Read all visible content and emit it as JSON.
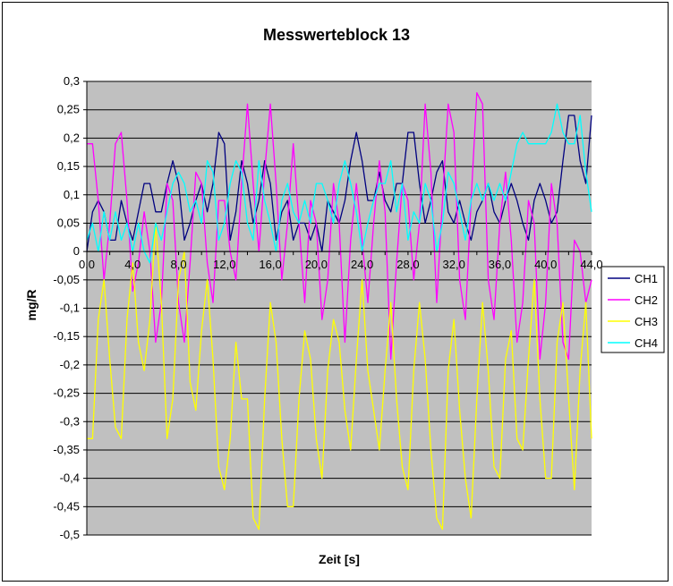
{
  "chart_data": {
    "type": "line",
    "title": "Messwerteblock 13",
    "xlabel": "Zeit [s]",
    "ylabel": "mg/R",
    "ylim": [
      -0.5,
      0.3
    ],
    "xlim": [
      0,
      44
    ],
    "x_tick_values": [
      0,
      4,
      8,
      12,
      16,
      20,
      24,
      28,
      32,
      36,
      40,
      44
    ],
    "x_tick_labels": [
      "0,0",
      "4,0",
      "8,0",
      "12,0",
      "16,0",
      "20,0",
      "24,0",
      "28,0",
      "32,0",
      "36,0",
      "40,0",
      "44,0"
    ],
    "y_tick_values": [
      0.3,
      0.25,
      0.2,
      0.15,
      0.1,
      0.05,
      0,
      -0.05,
      -0.1,
      -0.15,
      -0.2,
      -0.25,
      -0.3,
      -0.35,
      -0.4,
      -0.45,
      -0.5
    ],
    "y_tick_labels": [
      "0,3",
      "0,25",
      "0,2",
      "0,15",
      "0,1",
      "0,05",
      "0",
      "-0,05",
      "-0,1",
      "-0,15",
      "-0,2",
      "-0,25",
      "-0,3",
      "-0,35",
      "-0,4",
      "-0,45",
      "-0,5"
    ],
    "grid": true,
    "legend_position": "right",
    "plot_background": "#c0c0c0",
    "series": [
      {
        "name": "CH1",
        "color": "#000080",
        "x": [
          0,
          0.5,
          1,
          1.5,
          2,
          2.5,
          3,
          3.5,
          4,
          4.5,
          5,
          5.5,
          6,
          6.5,
          7,
          7.5,
          8,
          8.5,
          9,
          9.5,
          10,
          10.5,
          11,
          11.5,
          12,
          12.5,
          13,
          13.5,
          14,
          14.5,
          15,
          15.5,
          16,
          16.5,
          17,
          17.5,
          18,
          18.5,
          19,
          19.5,
          20,
          20.5,
          21,
          21.5,
          22,
          22.5,
          23,
          23.5,
          24,
          24.5,
          25,
          25.5,
          26,
          26.5,
          27,
          27.5,
          28,
          28.5,
          29,
          29.5,
          30,
          30.5,
          31,
          31.5,
          32,
          32.5,
          33,
          33.5,
          34,
          34.5,
          35,
          35.5,
          36,
          36.5,
          37,
          37.5,
          38,
          38.5,
          39,
          39.5,
          40,
          40.5,
          41,
          41.5,
          42,
          42.5,
          43,
          43.5,
          44
        ],
        "y": [
          0,
          0.07,
          0.09,
          0.07,
          0.02,
          0.02,
          0.09,
          0.05,
          0.02,
          0.07,
          0.12,
          0.12,
          0.07,
          0.07,
          0.12,
          0.16,
          0.12,
          0.02,
          0.05,
          0.09,
          0.12,
          0.07,
          0.12,
          0.21,
          0.19,
          0.02,
          0.07,
          0.16,
          0.12,
          0.05,
          0.09,
          0.16,
          0.12,
          0.02,
          0.07,
          0.09,
          0.02,
          0.05,
          0.05,
          0.02,
          0.05,
          0.0,
          0.09,
          0.07,
          0.05,
          0.09,
          0.16,
          0.21,
          0.16,
          0.09,
          0.09,
          0.14,
          0.09,
          0.07,
          0.12,
          0.12,
          0.21,
          0.21,
          0.12,
          0.05,
          0.09,
          0.14,
          0.16,
          0.07,
          0.05,
          0.09,
          0.05,
          0.02,
          0.07,
          0.09,
          0.12,
          0.07,
          0.05,
          0.09,
          0.12,
          0.09,
          0.05,
          0.02,
          0.09,
          0.12,
          0.09,
          0.05,
          0.07,
          0.16,
          0.24,
          0.24,
          0.16,
          0.12,
          0.24
        ]
      },
      {
        "name": "CH2",
        "color": "#ff00ff",
        "x": [
          0,
          0.5,
          1,
          1.5,
          2,
          2.5,
          3,
          3.5,
          4,
          4.5,
          5,
          5.5,
          6,
          6.5,
          7,
          7.5,
          8,
          8.5,
          9,
          9.5,
          10,
          10.5,
          11,
          11.5,
          12,
          12.5,
          13,
          13.5,
          14,
          14.5,
          15,
          15.5,
          16,
          16.5,
          17,
          17.5,
          18,
          18.5,
          19,
          19.5,
          20,
          20.5,
          21,
          21.5,
          22,
          22.5,
          23,
          23.5,
          24,
          24.5,
          25,
          25.5,
          26,
          26.5,
          27,
          27.5,
          28,
          28.5,
          29,
          29.5,
          30,
          30.5,
          31,
          31.5,
          32,
          32.5,
          33,
          33.5,
          34,
          34.5,
          35,
          35.5,
          36,
          36.5,
          37,
          37.5,
          38,
          38.5,
          39,
          39.5,
          40,
          40.5,
          41,
          41.5,
          42,
          42.5,
          43,
          43.5,
          44
        ],
        "y": [
          0.19,
          0.19,
          0.09,
          -0.05,
          0.05,
          0.19,
          0.21,
          0.09,
          -0.07,
          -0.02,
          0.07,
          0.0,
          -0.16,
          -0.09,
          0.12,
          0.09,
          -0.09,
          -0.16,
          -0.02,
          0.14,
          0.12,
          -0.02,
          -0.09,
          0.09,
          0.09,
          0.0,
          -0.05,
          0.12,
          0.26,
          0.12,
          0.0,
          0.14,
          0.26,
          0.12,
          -0.05,
          0.05,
          0.19,
          0.05,
          -0.09,
          0.09,
          0.05,
          -0.12,
          -0.05,
          0.12,
          0.05,
          -0.16,
          0.02,
          0.12,
          0.02,
          -0.09,
          0.05,
          0.16,
          0.07,
          -0.19,
          -0.02,
          0.12,
          0.09,
          -0.05,
          0.05,
          0.26,
          0.14,
          -0.09,
          0.09,
          0.26,
          0.21,
          -0.05,
          -0.12,
          0.09,
          0.28,
          0.26,
          -0.05,
          -0.12,
          0.05,
          0.14,
          0.02,
          -0.16,
          -0.09,
          0.09,
          0.05,
          -0.19,
          -0.09,
          0.12,
          0.05,
          -0.16,
          -0.19,
          0.02,
          0.0,
          -0.09,
          -0.05
        ]
      },
      {
        "name": "CH3",
        "color": "#ffff00",
        "x": [
          0,
          0.5,
          1,
          1.5,
          2,
          2.5,
          3,
          3.5,
          4,
          4.5,
          5,
          5.5,
          6,
          6.5,
          7,
          7.5,
          8,
          8.5,
          9,
          9.5,
          10,
          10.5,
          11,
          11.5,
          12,
          12.5,
          13,
          13.5,
          14,
          14.5,
          15,
          15.5,
          16,
          16.5,
          17,
          17.5,
          18,
          18.5,
          19,
          19.5,
          20,
          20.5,
          21,
          21.5,
          22,
          22.5,
          23,
          23.5,
          24,
          24.5,
          25,
          25.5,
          26,
          26.5,
          27,
          27.5,
          28,
          28.5,
          29,
          29.5,
          30,
          30.5,
          31,
          31.5,
          32,
          32.5,
          33,
          33.5,
          34,
          34.5,
          35,
          35.5,
          36,
          36.5,
          37,
          37.5,
          38,
          38.5,
          39,
          39.5,
          40,
          40.5,
          41,
          41.5,
          42,
          42.5,
          43,
          43.5,
          44
        ],
        "y": [
          -0.33,
          -0.33,
          -0.12,
          -0.05,
          -0.19,
          -0.31,
          -0.33,
          -0.12,
          -0.02,
          -0.16,
          -0.21,
          -0.12,
          0.05,
          -0.09,
          -0.33,
          -0.26,
          -0.05,
          0.0,
          -0.23,
          -0.28,
          -0.14,
          -0.05,
          -0.19,
          -0.38,
          -0.42,
          -0.33,
          -0.16,
          -0.26,
          -0.26,
          -0.47,
          -0.49,
          -0.26,
          -0.09,
          -0.16,
          -0.33,
          -0.45,
          -0.45,
          -0.26,
          -0.14,
          -0.19,
          -0.33,
          -0.4,
          -0.21,
          -0.12,
          -0.16,
          -0.28,
          -0.35,
          -0.19,
          -0.05,
          -0.21,
          -0.28,
          -0.35,
          -0.21,
          -0.09,
          -0.26,
          -0.38,
          -0.42,
          -0.21,
          -0.09,
          -0.19,
          -0.35,
          -0.47,
          -0.49,
          -0.21,
          -0.12,
          -0.28,
          -0.4,
          -0.47,
          -0.26,
          -0.09,
          -0.21,
          -0.38,
          -0.4,
          -0.19,
          -0.14,
          -0.33,
          -0.35,
          -0.19,
          -0.05,
          -0.26,
          -0.4,
          -0.4,
          -0.16,
          -0.09,
          -0.26,
          -0.42,
          -0.21,
          -0.09,
          -0.33
        ]
      },
      {
        "name": "CH4",
        "color": "#00ffff",
        "x": [
          0,
          0.5,
          1,
          1.5,
          2,
          2.5,
          3,
          3.5,
          4,
          4.5,
          5,
          5.5,
          6,
          6.5,
          7,
          7.5,
          8,
          8.5,
          9,
          9.5,
          10,
          10.5,
          11,
          11.5,
          12,
          12.5,
          13,
          13.5,
          14,
          14.5,
          15,
          15.5,
          16,
          16.5,
          17,
          17.5,
          18,
          18.5,
          19,
          19.5,
          20,
          20.5,
          21,
          21.5,
          22,
          22.5,
          23,
          23.5,
          24,
          24.5,
          25,
          25.5,
          26,
          26.5,
          27,
          27.5,
          28,
          28.5,
          29,
          29.5,
          30,
          30.5,
          31,
          31.5,
          32,
          32.5,
          33,
          33.5,
          34,
          34.5,
          35,
          35.5,
          36,
          36.5,
          37,
          37.5,
          38,
          38.5,
          39,
          39.5,
          40,
          40.5,
          41,
          41.5,
          42,
          42.5,
          43,
          43.5,
          44
        ],
        "y": [
          0.02,
          0.05,
          0.0,
          0.07,
          0.02,
          0.07,
          0.02,
          0.05,
          0.0,
          0.05,
          0.0,
          -0.02,
          0.05,
          0.02,
          0.07,
          0.12,
          0.14,
          0.12,
          0.07,
          0.09,
          0.05,
          0.16,
          0.14,
          0.02,
          0.05,
          0.12,
          0.16,
          0.14,
          0.05,
          0.02,
          0.16,
          0.09,
          0.05,
          0.0,
          0.09,
          0.12,
          0.07,
          0.05,
          0.09,
          0.05,
          0.12,
          0.12,
          0.09,
          0.05,
          0.12,
          0.16,
          0.12,
          0.07,
          0.0,
          0.05,
          0.09,
          0.12,
          0.12,
          0.16,
          0.07,
          0.12,
          0.02,
          0.07,
          0.05,
          0.12,
          0.09,
          0.0,
          0.05,
          0.14,
          0.12,
          0.07,
          0.02,
          0.09,
          0.12,
          0.09,
          0.12,
          0.09,
          0.12,
          0.09,
          0.14,
          0.19,
          0.21,
          0.19,
          0.19,
          0.19,
          0.19,
          0.21,
          0.26,
          0.21,
          0.19,
          0.19,
          0.24,
          0.14,
          0.07
        ]
      }
    ]
  }
}
